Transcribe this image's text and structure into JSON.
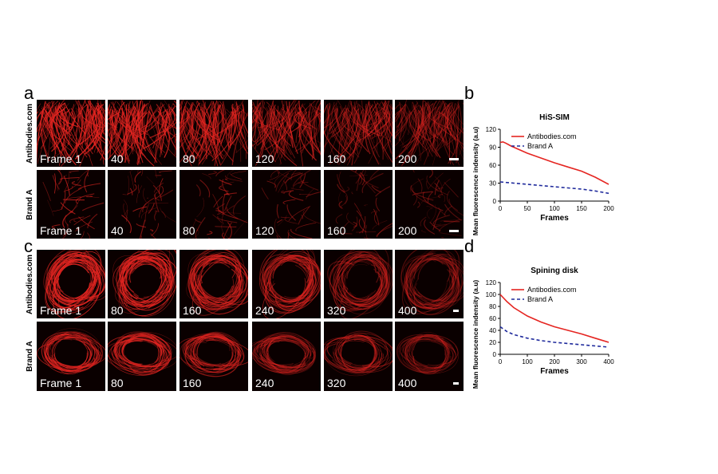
{
  "panels": {
    "a": "a",
    "b": "b",
    "c": "c",
    "d": "d"
  },
  "rows": {
    "a_top": "Antibodies.com",
    "a_bottom": "Brand A",
    "c_top": "Antibodies.com",
    "c_bottom": "Brand A"
  },
  "frames_a": [
    "Frame 1",
    "40",
    "80",
    "120",
    "160",
    "200"
  ],
  "frames_c": [
    "Frame 1",
    "80",
    "160",
    "240",
    "320",
    "400"
  ],
  "colors": {
    "red": "#e52521",
    "blue": "#1f2a9c"
  },
  "chart_data": [
    {
      "type": "line",
      "title": "HiS-SIM",
      "xlabel": "Frames",
      "ylabel": "Mean fluorescence indensity (a.u)",
      "xlim": [
        0,
        200
      ],
      "ylim": [
        0,
        120
      ],
      "xticks": [
        0,
        50,
        100,
        150,
        200
      ],
      "yticks": [
        0,
        30,
        60,
        90,
        120
      ],
      "legend": "top-right",
      "series": [
        {
          "name": "Antibodies.com",
          "color": "#e52521",
          "style": "solid",
          "x": [
            0,
            5,
            10,
            20,
            30,
            50,
            75,
            100,
            125,
            150,
            175,
            200
          ],
          "y": [
            98,
            99,
            97,
            92,
            88,
            80,
            72,
            64,
            57,
            50,
            40,
            28
          ]
        },
        {
          "name": "Brand A",
          "color": "#1f2a9c",
          "style": "dashed",
          "x": [
            0,
            25,
            50,
            75,
            100,
            125,
            150,
            175,
            200
          ],
          "y": [
            32,
            30,
            28,
            26,
            24,
            22,
            20,
            17,
            13
          ]
        }
      ]
    },
    {
      "type": "line",
      "title": "Spining disk",
      "xlabel": "Frames",
      "ylabel": "Mean fluorescence indensity (a.u)",
      "xlim": [
        0,
        400
      ],
      "ylim": [
        0,
        120
      ],
      "xticks": [
        0,
        100,
        200,
        300,
        400
      ],
      "yticks": [
        0,
        20,
        40,
        60,
        80,
        100,
        120
      ],
      "legend": "top-right",
      "series": [
        {
          "name": "Antibodies.com",
          "color": "#e52521",
          "style": "solid",
          "x": [
            0,
            25,
            50,
            100,
            150,
            200,
            250,
            300,
            350,
            400
          ],
          "y": [
            100,
            88,
            78,
            64,
            54,
            46,
            40,
            34,
            27,
            20
          ]
        },
        {
          "name": "Brand A",
          "color": "#1f2a9c",
          "style": "dashed",
          "x": [
            0,
            25,
            50,
            100,
            150,
            200,
            250,
            300,
            350,
            400
          ],
          "y": [
            46,
            38,
            33,
            27,
            23,
            20,
            18,
            16,
            14,
            12
          ]
        }
      ]
    }
  ]
}
